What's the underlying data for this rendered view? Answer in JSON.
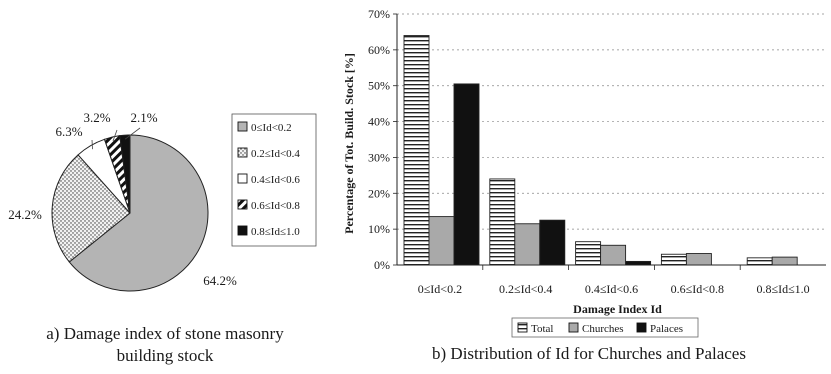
{
  "chart_data": [
    {
      "type": "pie",
      "caption_lines": [
        "a) Damage index of stone masonry",
        "building stock"
      ],
      "slices": [
        {
          "label": "0≤Id<0.2",
          "value": 64.2,
          "value_label": "64.2%",
          "pattern": "light-gray"
        },
        {
          "label": "0.2≤Id<0.4",
          "value": 24.2,
          "value_label": "24.2%",
          "pattern": "dotted"
        },
        {
          "label": "0.4≤Id<0.6",
          "value": 6.3,
          "value_label": "6.3%",
          "pattern": "white"
        },
        {
          "label": "0.6≤Id<0.8",
          "value": 3.2,
          "value_label": "3.2%",
          "pattern": "diagonal-stripes"
        },
        {
          "label": "0.8≤Id≤1.0",
          "value": 2.1,
          "value_label": "2.1%",
          "pattern": "black"
        }
      ],
      "legend_placement": "right"
    },
    {
      "type": "bar",
      "caption": "b) Distribution of Id for Churches and Palaces",
      "categories": [
        "0≤Id<0.2",
        "0.2≤Id<0.4",
        "0.4≤Id<0.6",
        "0.6≤Id<0.8",
        "0.8≤Id≤1.0"
      ],
      "series": [
        {
          "name": "Total",
          "values": [
            64,
            24,
            6.5,
            3,
            2
          ],
          "pattern": "horizontal-stripes"
        },
        {
          "name": "Churches",
          "values": [
            13.5,
            11.5,
            5.5,
            3.2,
            2.2
          ],
          "pattern": "gray"
        },
        {
          "name": "Palaces",
          "values": [
            50.5,
            12.5,
            1,
            0,
            0
          ],
          "pattern": "black"
        }
      ],
      "xlabel": "Damage Index Id",
      "ylabel": "Percentage of Tot. Build. Stock [%]",
      "ylim": [
        0,
        70
      ],
      "yticks": [
        "0%",
        "10%",
        "20%",
        "30%",
        "40%",
        "50%",
        "60%",
        "70%"
      ],
      "grid": "horizontal-dashed",
      "legend_placement": "bottom"
    }
  ],
  "colors": {
    "light_gray": "#b4b4b4",
    "churches_gray": "#a9a9a9",
    "black": "#111111",
    "white": "#ffffff",
    "outline": "#222222"
  }
}
